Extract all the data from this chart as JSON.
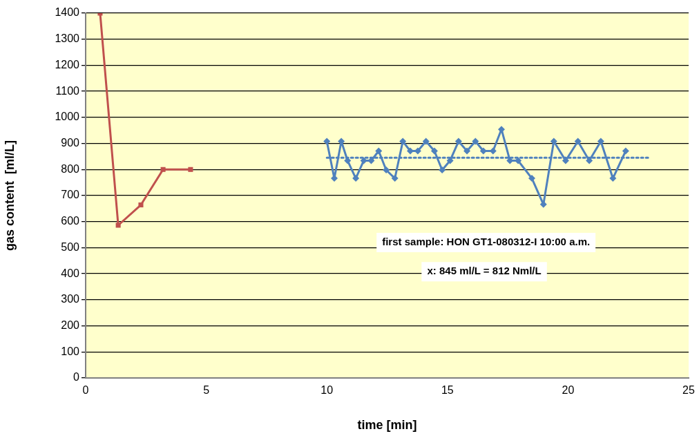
{
  "chart_data": {
    "type": "line",
    "xlabel": "time [min]",
    "ylabel": "gas content  [ml/L]",
    "xlim": [
      0,
      25
    ],
    "xticks": [
      0,
      5,
      10,
      15,
      20,
      25
    ],
    "ylim": [
      0,
      1400
    ],
    "yticks": [
      0,
      100,
      200,
      300,
      400,
      500,
      600,
      700,
      800,
      900,
      1000,
      1100,
      1200,
      1300,
      1400
    ],
    "grid": "y",
    "legend": false,
    "annotations": [
      "first sample: HON GT1-080312-I 10:00 a.m.",
      "x: 845 ml/L = 812 Nml/L"
    ],
    "series": [
      {
        "type": "line",
        "color": "#c0504d",
        "marker": "square",
        "x": [
          0.6,
          1.35,
          2.29,
          3.21,
          4.35
        ],
        "values": [
          1400,
          586,
          664,
          800,
          800
        ]
      },
      {
        "type": "line",
        "color": "#4f81bd",
        "marker": "diamond",
        "x": [
          10.0,
          10.31,
          10.6,
          10.86,
          11.2,
          11.53,
          11.84,
          12.15,
          12.46,
          12.82,
          13.15,
          13.46,
          13.77,
          14.11,
          14.46,
          14.78,
          15.11,
          15.46,
          15.81,
          16.16,
          16.49,
          16.89,
          17.24,
          17.59,
          17.93,
          18.5,
          18.98,
          19.41,
          19.9,
          20.41,
          20.88,
          21.36,
          21.86,
          22.39
        ],
        "values": [
          908,
          766,
          908,
          834,
          766,
          834,
          834,
          871,
          798,
          766,
          908,
          871,
          871,
          908,
          871,
          798,
          834,
          908,
          871,
          908,
          871,
          871,
          954,
          834,
          834,
          766,
          666,
          908,
          834,
          908,
          834,
          908,
          766,
          871
        ]
      },
      {
        "type": "line",
        "color": "#4f81bd",
        "marker": "none",
        "line_style": "dotted",
        "x": [
          10.0,
          23.4
        ],
        "values": [
          845,
          845
        ]
      }
    ]
  }
}
